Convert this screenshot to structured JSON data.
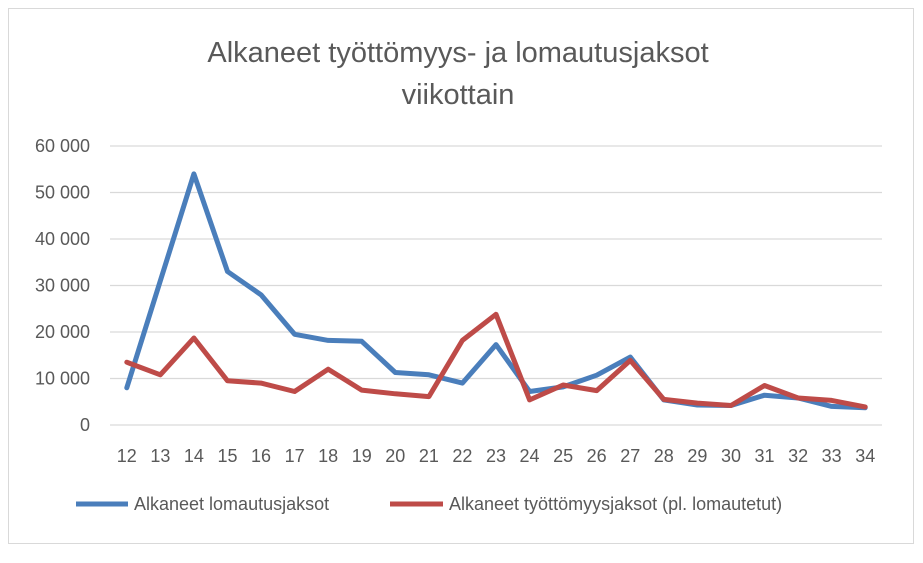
{
  "chart_data": {
    "type": "line",
    "title_line1": "Alkaneet työttömyys- ja lomautusjaksot",
    "title_line2": "viikottain",
    "categories": [
      "12",
      "13",
      "14",
      "15",
      "16",
      "17",
      "18",
      "19",
      "20",
      "21",
      "22",
      "23",
      "24",
      "25",
      "26",
      "27",
      "28",
      "29",
      "30",
      "31",
      "32",
      "33",
      "34"
    ],
    "y_ticks": [
      {
        "value": 0,
        "label": "0"
      },
      {
        "value": 10000,
        "label": "10 000"
      },
      {
        "value": 20000,
        "label": "20 000"
      },
      {
        "value": 30000,
        "label": "30 000"
      },
      {
        "value": 40000,
        "label": "40 000"
      },
      {
        "value": 50000,
        "label": "50 000"
      },
      {
        "value": 60000,
        "label": "60 000"
      }
    ],
    "ylim": [
      0,
      60000
    ],
    "grid": true,
    "legend_position": "bottom",
    "series": [
      {
        "name": "Alkaneet lomautusjaksot",
        "color": "#4a7ebb",
        "values": [
          8000,
          31000,
          54000,
          33000,
          28000,
          19500,
          18200,
          18000,
          11300,
          10800,
          9000,
          17300,
          7200,
          8200,
          10700,
          14600,
          5400,
          4300,
          4200,
          6400,
          5800,
          4000,
          3700
        ]
      },
      {
        "name": "Alkaneet työttömyysjaksot (pl. lomautetut)",
        "color": "#be4b48",
        "values": [
          13500,
          10800,
          18700,
          9500,
          9000,
          7200,
          12000,
          7500,
          6700,
          6100,
          18200,
          23800,
          5400,
          8600,
          7400,
          13900,
          5500,
          4700,
          4200,
          8500,
          5800,
          5300,
          3900
        ]
      }
    ]
  }
}
